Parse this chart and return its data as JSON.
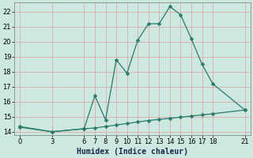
{
  "xlabel": "Humidex (Indice chaleur)",
  "bg_color": "#cce8e0",
  "line_color": "#2a7a6a",
  "grid_color": "#ddaaaa",
  "xlim": [
    -0.5,
    21.5
  ],
  "ylim": [
    13.8,
    22.6
  ],
  "yticks": [
    14,
    15,
    16,
    17,
    18,
    19,
    20,
    21,
    22
  ],
  "xticks": [
    0,
    3,
    6,
    7,
    8,
    9,
    10,
    11,
    12,
    13,
    14,
    15,
    16,
    17,
    18,
    21
  ],
  "curve1_x": [
    0,
    3,
    6,
    7,
    8,
    9,
    10,
    11,
    12,
    13,
    14,
    15,
    16,
    17,
    18,
    21
  ],
  "curve1_y": [
    14.3,
    14.0,
    14.2,
    16.4,
    14.8,
    18.8,
    17.9,
    20.1,
    21.2,
    21.2,
    22.35,
    21.8,
    20.2,
    18.5,
    17.2,
    15.45
  ],
  "curve2_x": [
    0,
    3,
    6,
    7,
    8,
    9,
    10,
    11,
    12,
    13,
    14,
    15,
    16,
    17,
    18,
    21
  ],
  "curve2_y": [
    14.35,
    14.0,
    14.2,
    14.25,
    14.35,
    14.45,
    14.55,
    14.65,
    14.75,
    14.82,
    14.9,
    14.97,
    15.05,
    15.12,
    15.2,
    15.45
  ],
  "markersize": 2.5,
  "linewidth": 0.9,
  "fontsize_label": 7,
  "fontsize_tick": 6
}
